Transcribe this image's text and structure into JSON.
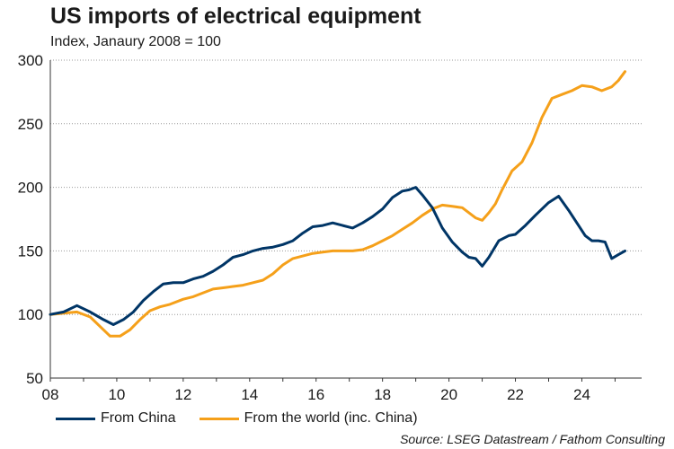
{
  "chart_data": {
    "type": "line",
    "title": "US imports of electrical equipment",
    "subtitle": "Index, Janaury 2008 = 100",
    "xlabel": "",
    "ylabel": "",
    "xlim": [
      2008,
      2025.8
    ],
    "ylim": [
      50,
      300
    ],
    "yticks": [
      50,
      100,
      150,
      200,
      250,
      300
    ],
    "xticks": [
      2008,
      2010,
      2012,
      2014,
      2016,
      2018,
      2020,
      2022,
      2024
    ],
    "xtick_labels": [
      "08",
      "10",
      "12",
      "14",
      "16",
      "18",
      "20",
      "22",
      "24"
    ],
    "grid": true,
    "legend_position": "bottom-left",
    "series": [
      {
        "name": "From China",
        "color": "#003566",
        "x": [
          2008.0,
          2008.4,
          2008.8,
          2009.2,
          2009.6,
          2009.9,
          2010.2,
          2010.5,
          2010.8,
          2011.1,
          2011.4,
          2011.7,
          2012.0,
          2012.3,
          2012.6,
          2012.9,
          2013.2,
          2013.5,
          2013.8,
          2014.1,
          2014.4,
          2014.7,
          2015.0,
          2015.3,
          2015.6,
          2015.9,
          2016.2,
          2016.5,
          2016.8,
          2017.1,
          2017.4,
          2017.7,
          2018.0,
          2018.3,
          2018.6,
          2018.8,
          2019.0,
          2019.2,
          2019.5,
          2019.8,
          2020.1,
          2020.4,
          2020.6,
          2020.8,
          2021.0,
          2021.2,
          2021.5,
          2021.8,
          2022.0,
          2022.3,
          2022.6,
          2022.8,
          2023.0,
          2023.3,
          2023.6,
          2023.9,
          2024.1,
          2024.3,
          2024.5,
          2024.7,
          2024.9,
          2025.1,
          2025.3
        ],
        "y": [
          100,
          102,
          107,
          102,
          96,
          92,
          96,
          102,
          111,
          118,
          124,
          125,
          125,
          128,
          130,
          134,
          139,
          145,
          147,
          150,
          152,
          153,
          155,
          158,
          164,
          169,
          170,
          172,
          170,
          168,
          172,
          177,
          183,
          192,
          197,
          198,
          200,
          194,
          184,
          168,
          157,
          149,
          145,
          144,
          138,
          145,
          158,
          162,
          163,
          170,
          178,
          183,
          188,
          193,
          182,
          170,
          162,
          158,
          158,
          157,
          144,
          147,
          150
        ]
      },
      {
        "name": "From the world (inc. China)",
        "color": "#f5a01a",
        "x": [
          2008.0,
          2008.4,
          2008.8,
          2009.2,
          2009.6,
          2009.8,
          2010.1,
          2010.4,
          2010.7,
          2011.0,
          2011.3,
          2011.6,
          2012.0,
          2012.3,
          2012.6,
          2012.9,
          2013.2,
          2013.5,
          2013.8,
          2014.1,
          2014.4,
          2014.7,
          2015.0,
          2015.3,
          2015.6,
          2015.9,
          2016.2,
          2016.5,
          2016.8,
          2017.1,
          2017.4,
          2017.7,
          2018.0,
          2018.3,
          2018.6,
          2018.9,
          2019.2,
          2019.5,
          2019.8,
          2020.1,
          2020.4,
          2020.6,
          2020.8,
          2021.0,
          2021.2,
          2021.4,
          2021.6,
          2021.9,
          2022.2,
          2022.5,
          2022.8,
          2023.1,
          2023.4,
          2023.7,
          2024.0,
          2024.3,
          2024.6,
          2024.9,
          2025.1,
          2025.3
        ],
        "y": [
          100,
          101,
          102,
          98,
          88,
          83,
          83,
          88,
          96,
          103,
          106,
          108,
          112,
          114,
          117,
          120,
          121,
          122,
          123,
          125,
          127,
          132,
          139,
          144,
          146,
          148,
          149,
          150,
          150,
          150,
          151,
          154,
          158,
          162,
          167,
          172,
          178,
          183,
          186,
          185,
          184,
          180,
          176,
          174,
          180,
          187,
          198,
          213,
          220,
          235,
          255,
          270,
          273,
          276,
          280,
          279,
          276,
          279,
          284,
          291
        ]
      }
    ]
  },
  "legend": {
    "items": [
      {
        "label": "From China",
        "color": "#003566"
      },
      {
        "label": "From the world (inc. China)",
        "color": "#f5a01a"
      }
    ]
  },
  "source": "Source: LSEG Datastream / Fathom Consulting"
}
